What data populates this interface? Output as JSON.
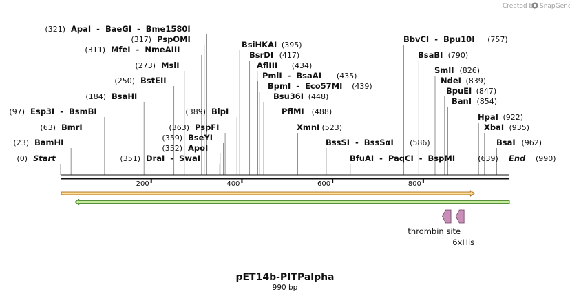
{
  "credit": {
    "prefix": "Created by",
    "brand": "SnapGene",
    "logo_color": "#8a8a8a"
  },
  "plasmid": {
    "name": "pET14b-PITPalpha",
    "length_label": "990 bp",
    "length": 990
  },
  "ruler_ticks": [
    {
      "value": 200,
      "label": "200"
    },
    {
      "value": 400,
      "label": "400"
    },
    {
      "value": 600,
      "label": "600"
    },
    {
      "value": 800,
      "label": "800"
    }
  ],
  "ends": {
    "start": {
      "position": 0,
      "pos_label": "(0)",
      "name": "Start"
    },
    "end": {
      "position": 990,
      "pos_label": "(990)",
      "name": "End"
    }
  },
  "enzyme_rows": [
    {
      "side": "left",
      "pos_label": "(321)",
      "names": "ApaI  -  BaeGI  -  Bme1580I",
      "cut_positions": [
        321
      ]
    },
    {
      "side": "left",
      "pos_label": "(317)",
      "names": "PspOMI",
      "cut_positions": [
        317
      ]
    },
    {
      "side": "left",
      "pos_label": "(311)",
      "names": "MfeI  -  NmeAIII",
      "cut_positions": [
        311
      ]
    },
    {
      "side": "left",
      "pos_label": "(273)",
      "names": "MslI",
      "cut_positions": [
        273
      ]
    },
    {
      "side": "left",
      "pos_label": "(250)",
      "names": "BstEII",
      "cut_positions": [
        250
      ]
    },
    {
      "side": "left",
      "pos_label": "(184)",
      "names": "BsaHI",
      "cut_positions": [
        184
      ]
    },
    {
      "side": "left",
      "pos_label": "(97)",
      "names": "Esp3I  -  BsmBI",
      "cut_positions": [
        97
      ]
    },
    {
      "side": "left",
      "pos_label": "(63)",
      "names": "BmrI",
      "cut_positions": [
        63
      ]
    },
    {
      "side": "left",
      "pos_label": "(23)",
      "names": "BamHI",
      "cut_positions": [
        23
      ]
    },
    {
      "side": "left",
      "pos_label": "(389)",
      "names": "BlpI",
      "cut_positions": [
        389
      ]
    },
    {
      "side": "left",
      "pos_label": "(363)",
      "names": "PspFI",
      "cut_positions": [
        363
      ]
    },
    {
      "side": "left",
      "pos_label": "(359)",
      "names": "BseYI",
      "cut_positions": [
        359
      ]
    },
    {
      "side": "left",
      "pos_label": "(352)",
      "names": "ApoI",
      "cut_positions": [
        352
      ]
    },
    {
      "side": "left",
      "pos_label": "(351)",
      "names": "DraI  -  SwaI",
      "cut_positions": [
        351
      ]
    },
    {
      "side": "right",
      "pos_label": "(395)",
      "names": "BsiHKAI",
      "cut_positions": [
        395
      ]
    },
    {
      "side": "right",
      "pos_label": "(417)",
      "names": "BsrDI",
      "cut_positions": [
        417
      ]
    },
    {
      "side": "right",
      "pos_label": "(434)",
      "names": "AflIII",
      "cut_positions": [
        434
      ]
    },
    {
      "side": "right",
      "pos_label": "(435)",
      "names": "PmlI  -  BsaAI",
      "cut_positions": [
        435
      ]
    },
    {
      "side": "right",
      "pos_label": "(439)",
      "names": "BpmI  -  Eco57MI",
      "cut_positions": [
        439
      ]
    },
    {
      "side": "right",
      "pos_label": "(448)",
      "names": "Bsu36I",
      "cut_positions": [
        448
      ]
    },
    {
      "side": "right",
      "pos_label": "(488)",
      "names": "PflMI",
      "cut_positions": [
        488
      ]
    },
    {
      "side": "right",
      "pos_label": "(523)",
      "names": "XmnI",
      "cut_positions": [
        523
      ]
    },
    {
      "side": "right",
      "pos_label": "(586)",
      "names": "BssSI  -  BssSαI",
      "cut_positions": [
        586
      ]
    },
    {
      "side": "right",
      "pos_label": "(639)",
      "names": "BfuAI  -  PaqCI  -  BspMI",
      "cut_positions": [
        639
      ]
    },
    {
      "side": "right",
      "pos_label": "(757)",
      "names": "BbvCI  -  Bpu10I",
      "cut_positions": [
        757
      ]
    },
    {
      "side": "right",
      "pos_label": "(790)",
      "names": "BsaBI",
      "cut_positions": [
        790
      ]
    },
    {
      "side": "right",
      "pos_label": "(826)",
      "names": "SmlI",
      "cut_positions": [
        826
      ]
    },
    {
      "side": "right",
      "pos_label": "(839)",
      "names": "NdeI",
      "cut_positions": [
        839
      ]
    },
    {
      "side": "right",
      "pos_label": "(847)",
      "names": "BpuEI",
      "cut_positions": [
        847
      ]
    },
    {
      "side": "right",
      "pos_label": "(854)",
      "names": "BanI",
      "cut_positions": [
        854
      ]
    },
    {
      "side": "right",
      "pos_label": "(922)",
      "names": "HpaI",
      "cut_positions": [
        922
      ]
    },
    {
      "side": "right",
      "pos_label": "(935)",
      "names": "XbaI",
      "cut_positions": [
        935
      ]
    },
    {
      "side": "right",
      "pos_label": "(962)",
      "names": "BsaI",
      "cut_positions": [
        962
      ]
    }
  ],
  "features": [
    {
      "kind": "arrow",
      "direction": "forward",
      "start": 0,
      "end": 913,
      "fill": "#f4b840",
      "fill_light": "#fde5a8",
      "stroke": "#a05a10",
      "label": ""
    },
    {
      "kind": "arrow",
      "direction": "reverse",
      "start": 30,
      "end": 990,
      "fill": "#8cd64a",
      "fill_light": "#d7f3b5",
      "stroke": "#2e6e12",
      "label": ""
    },
    {
      "kind": "tag",
      "direction": "reverse",
      "start": 842,
      "end": 861,
      "fill": "#c98fb8",
      "stroke": "#6b3f60",
      "label": "thrombin site"
    },
    {
      "kind": "tag",
      "direction": "reverse",
      "start": 872,
      "end": 890,
      "fill": "#c98fb8",
      "stroke": "#6b3f60",
      "label": "6xHis"
    }
  ]
}
